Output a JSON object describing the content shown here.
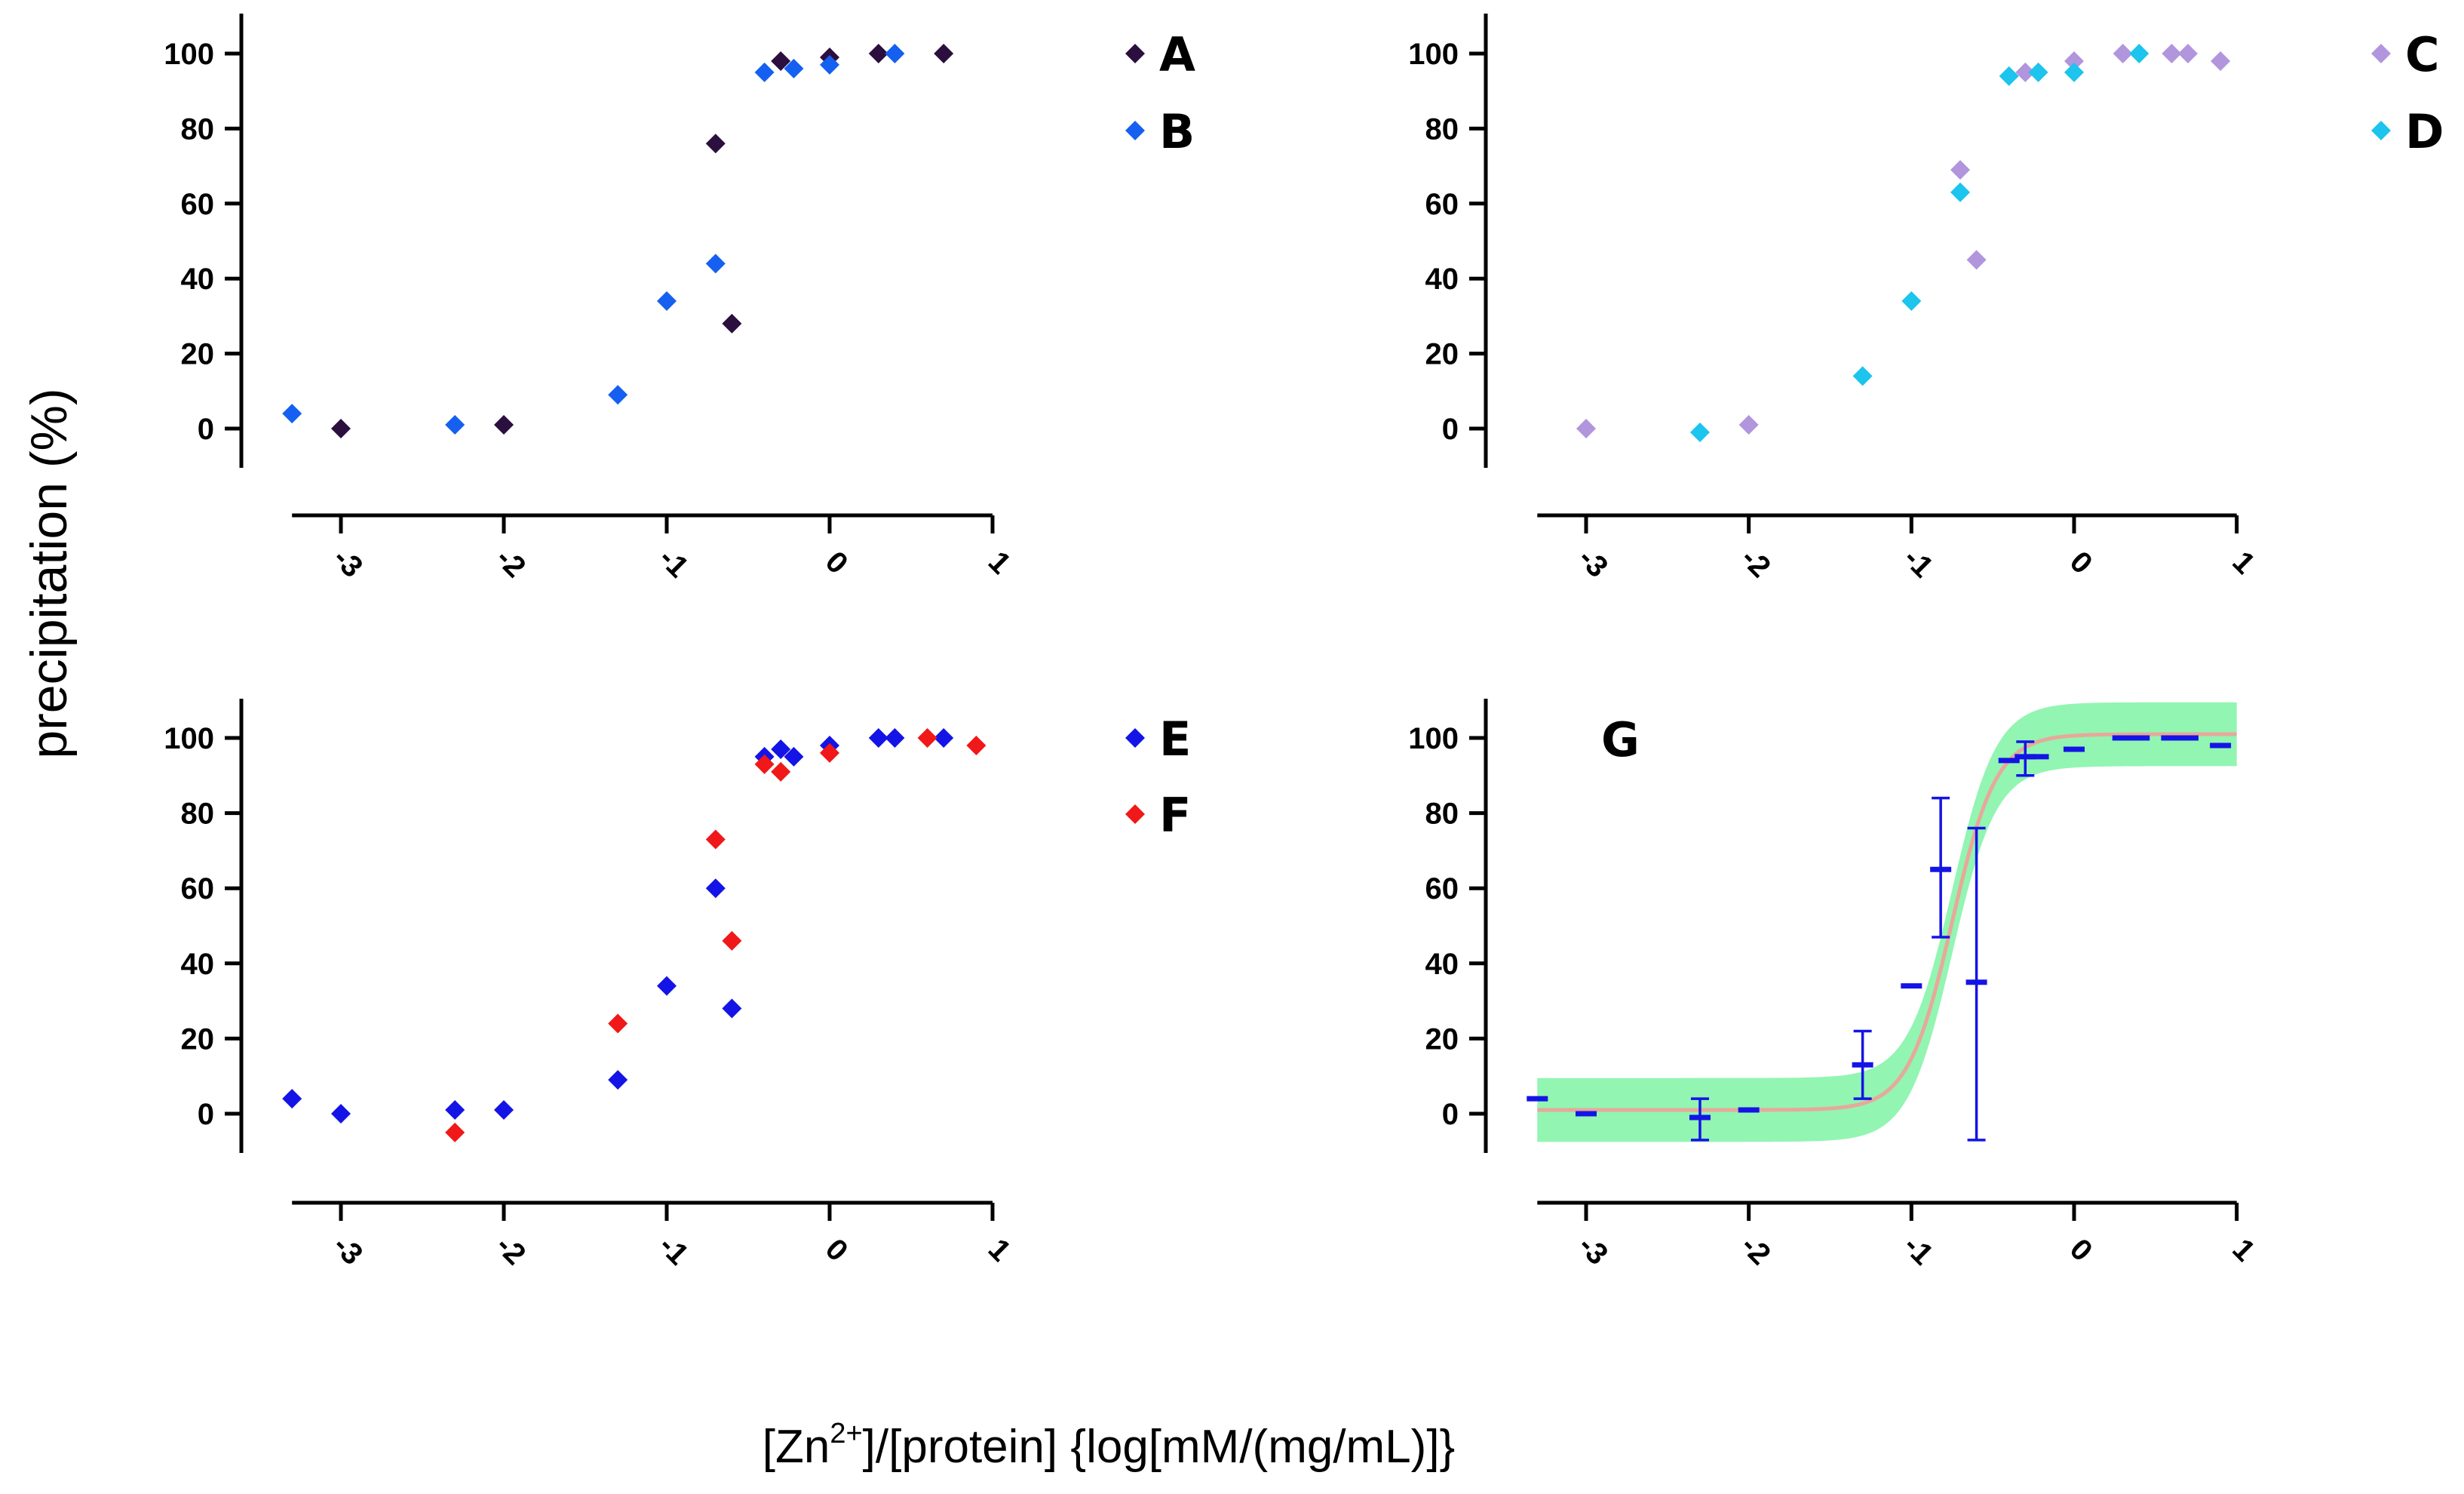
{
  "ylabel": "precipitation (%)",
  "xlabel": {
    "prefix": "[Zn",
    "superscript": "2+",
    "suffix": "]/[protein] {log[mM/(mg/mL)]}"
  },
  "chart_data": [
    {
      "type": "scatter",
      "panel": "top-left",
      "xlim": [
        -3.3,
        1
      ],
      "ylim": [
        -10,
        110
      ],
      "xticks": [
        -3,
        -2,
        -1,
        0,
        1
      ],
      "yticks": [
        0,
        20,
        40,
        60,
        80,
        100
      ],
      "xtick_labels": [
        "-3",
        "-2",
        "-1",
        "0",
        "1"
      ],
      "ytick_labels": [
        "0",
        "20",
        "40",
        "60",
        "80",
        "100"
      ],
      "series": [
        {
          "name": "A",
          "color": "#2b0f3e",
          "points": [
            [
              -3,
              0
            ],
            [
              -2,
              1
            ],
            [
              -0.7,
              76
            ],
            [
              -0.6,
              28
            ],
            [
              -0.3,
              98
            ],
            [
              0,
              99
            ],
            [
              0.3,
              100
            ],
            [
              0.7,
              100
            ]
          ]
        },
        {
          "name": "B",
          "color": "#1560f0",
          "points": [
            [
              -3.3,
              4
            ],
            [
              -2.3,
              1
            ],
            [
              -1.3,
              9
            ],
            [
              -1,
              34
            ],
            [
              -0.7,
              44
            ],
            [
              -0.4,
              95
            ],
            [
              -0.22,
              96
            ],
            [
              0,
              97
            ],
            [
              0.4,
              100
            ]
          ]
        }
      ]
    },
    {
      "type": "scatter",
      "panel": "top-right",
      "xlim": [
        -3.3,
        1
      ],
      "ylim": [
        -10,
        110
      ],
      "xticks": [
        -3,
        -2,
        -1,
        0,
        1
      ],
      "yticks": [
        0,
        20,
        40,
        60,
        80,
        100
      ],
      "xtick_labels": [
        "-3",
        "-2",
        "-1",
        "0",
        "1"
      ],
      "ytick_labels": [
        "0",
        "20",
        "40",
        "60",
        "80",
        "100"
      ],
      "series": [
        {
          "name": "C",
          "color": "#b195dd",
          "points": [
            [
              -3,
              0
            ],
            [
              -2,
              1
            ],
            [
              -0.7,
              69
            ],
            [
              -0.6,
              45
            ],
            [
              -0.3,
              95
            ],
            [
              0,
              98
            ],
            [
              0.3,
              100
            ],
            [
              0.6,
              100
            ],
            [
              0.7,
              100
            ],
            [
              0.9,
              98
            ]
          ]
        },
        {
          "name": "D",
          "color": "#1cc4ee",
          "points": [
            [
              -2.3,
              -1
            ],
            [
              -1.3,
              14
            ],
            [
              -1,
              34
            ],
            [
              -0.7,
              63
            ],
            [
              -0.4,
              94
            ],
            [
              -0.22,
              95
            ],
            [
              0,
              95
            ],
            [
              0.4,
              100
            ]
          ]
        }
      ]
    },
    {
      "type": "scatter",
      "panel": "bottom-left",
      "xlim": [
        -3.3,
        1
      ],
      "ylim": [
        -10,
        110
      ],
      "xticks": [
        -3,
        -2,
        -1,
        0,
        1
      ],
      "yticks": [
        0,
        20,
        40,
        60,
        80,
        100
      ],
      "xtick_labels": [
        "-3",
        "-2",
        "-1",
        "0",
        "1"
      ],
      "ytick_labels": [
        "0",
        "20",
        "40",
        "60",
        "80",
        "100"
      ],
      "series": [
        {
          "name": "E",
          "color": "#1414e6",
          "points": [
            [
              -3.3,
              4
            ],
            [
              -3,
              0
            ],
            [
              -2.3,
              1
            ],
            [
              -2,
              1
            ],
            [
              -1.3,
              9
            ],
            [
              -1,
              34
            ],
            [
              -0.7,
              60
            ],
            [
              -0.6,
              28
            ],
            [
              -0.4,
              95
            ],
            [
              -0.3,
              97
            ],
            [
              -0.22,
              95
            ],
            [
              0,
              98
            ],
            [
              0.3,
              100
            ],
            [
              0.4,
              100
            ],
            [
              0.7,
              100
            ]
          ]
        },
        {
          "name": "F",
          "color": "#f01818",
          "points": [
            [
              -2.3,
              -5
            ],
            [
              -1.3,
              24
            ],
            [
              -0.7,
              73
            ],
            [
              -0.6,
              46
            ],
            [
              -0.4,
              93
            ],
            [
              -0.3,
              91
            ],
            [
              0,
              96
            ],
            [
              0.6,
              100
            ],
            [
              0.9,
              98
            ]
          ]
        }
      ]
    },
    {
      "type": "scatter",
      "panel": "bottom-right",
      "title": "G",
      "xlim": [
        -3.3,
        1
      ],
      "ylim": [
        -10,
        110
      ],
      "xticks": [
        -3,
        -2,
        -1,
        0,
        1
      ],
      "yticks": [
        0,
        20,
        40,
        60,
        80,
        100
      ],
      "xtick_labels": [
        "-3",
        "-2",
        "-1",
        "0",
        "1"
      ],
      "ytick_labels": [
        "0",
        "20",
        "40",
        "60",
        "80",
        "100"
      ],
      "means": {
        "color": "#1414e6",
        "points": [
          {
            "x": -3.3,
            "y": 4
          },
          {
            "x": -3,
            "y": 0
          },
          {
            "x": -2.3,
            "y": -1,
            "lo": -7,
            "hi": 4
          },
          {
            "x": -2,
            "y": 1
          },
          {
            "x": -1.3,
            "y": 13,
            "lo": 4,
            "hi": 22
          },
          {
            "x": -1,
            "y": 34
          },
          {
            "x": -0.82,
            "y": 65,
            "lo": 47,
            "hi": 84
          },
          {
            "x": -0.6,
            "y": 35,
            "lo": -7,
            "hi": 76
          },
          {
            "x": -0.4,
            "y": 94
          },
          {
            "x": -0.3,
            "y": 95,
            "lo": 90,
            "hi": 99
          },
          {
            "x": -0.22,
            "y": 95
          },
          {
            "x": 0,
            "y": 97
          },
          {
            "x": 0.3,
            "y": 100
          },
          {
            "x": 0.4,
            "y": 100
          },
          {
            "x": 0.6,
            "y": 100
          },
          {
            "x": 0.7,
            "y": 100
          },
          {
            "x": 0.9,
            "y": 98
          }
        ]
      },
      "fit": {
        "type": "sigmoid",
        "bottom": 1,
        "top": 101,
        "x50": -0.75,
        "hill": 3.2,
        "color": "#e8a89a"
      },
      "band": {
        "halfwidth": 8.5,
        "color": "#92f5b2"
      }
    }
  ]
}
